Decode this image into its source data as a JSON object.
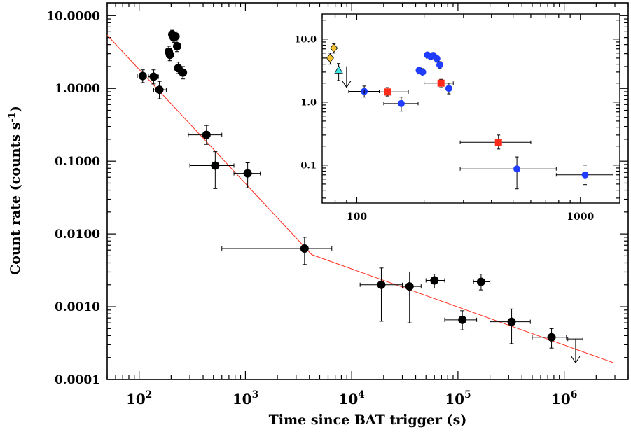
{
  "chart_data": [
    {
      "type": "scatter",
      "xlabel": "Time since BAT trigger (s)",
      "ylabel": "Count rate (counts s",
      "ylabel_superscript": "-1",
      "ylabel_close": ")",
      "x_scale": "log",
      "y_scale": "log",
      "xlim": [
        50,
        4000000
      ],
      "ylim": [
        0.0001,
        15
      ],
      "x_tick_labels": [
        {
          "value": 100,
          "base": "10",
          "exp": "2"
        },
        {
          "value": 1000,
          "base": "10",
          "exp": "3"
        },
        {
          "value": 10000,
          "base": "10",
          "exp": "4"
        },
        {
          "value": 100000,
          "base": "10",
          "exp": "5"
        },
        {
          "value": 1000000,
          "base": "10",
          "exp": "6"
        }
      ],
      "y_tick_labels": [
        {
          "value": 10,
          "label": "10.0000"
        },
        {
          "value": 1,
          "label": "1.0000"
        },
        {
          "value": 0.1,
          "label": "0.1000"
        },
        {
          "value": 0.01,
          "label": "0.0100"
        },
        {
          "value": 0.001,
          "label": "0.0010"
        },
        {
          "value": 0.0001,
          "label": "0.0001"
        }
      ],
      "series": [
        {
          "marker": "circle",
          "color": "#000000",
          "points": [
            {
              "x": 108,
              "y": 1.48,
              "xlo": 96,
              "xhi": 122,
              "ylo": 1.2,
              "yhi": 1.8
            },
            {
              "x": 137,
              "y": 1.45,
              "xlo": 122,
              "xhi": 152,
              "ylo": 1.15,
              "yhi": 1.8
            },
            {
              "x": 155,
              "y": 0.96,
              "xlo": 137,
              "xhi": 180,
              "ylo": 0.72,
              "yhi": 1.25
            },
            {
              "x": 190,
              "y": 3.2,
              "ylo": 2.7,
              "yhi": 3.8
            },
            {
              "x": 195,
              "y": 2.9,
              "ylo": 2.4,
              "yhi": 3.5
            },
            {
              "x": 205,
              "y": 5.5,
              "ylo": 4.8,
              "yhi": 6.3
            },
            {
              "x": 212,
              "y": 5.0,
              "ylo": 4.3,
              "yhi": 5.8
            },
            {
              "x": 220,
              "y": 5.2,
              "ylo": 4.5,
              "yhi": 6.0
            },
            {
              "x": 228,
              "y": 3.8,
              "ylo": 3.2,
              "yhi": 4.5
            },
            {
              "x": 233,
              "y": 1.9,
              "ylo": 1.6,
              "yhi": 2.3
            },
            {
              "x": 258,
              "y": 1.65,
              "ylo": 1.35,
              "yhi": 2.0
            },
            {
              "x": 430,
              "y": 0.23,
              "xlo": 290,
              "xhi": 600,
              "ylo": 0.17,
              "yhi": 0.31
            },
            {
              "x": 520,
              "y": 0.087,
              "xlo": 300,
              "xhi": 780,
              "ylo": 0.042,
              "yhi": 0.135
            },
            {
              "x": 1050,
              "y": 0.068,
              "xlo": 780,
              "xhi": 1380,
              "ylo": 0.043,
              "yhi": 0.095
            },
            {
              "x": 3600,
              "y": 0.0063,
              "xlo": 600,
              "xhi": 6500,
              "ylo": 0.0038,
              "yhi": 0.009
            },
            {
              "x": 19000,
              "y": 0.002,
              "xlo": 12000,
              "xhi": 30000,
              "ylo": 0.00063,
              "yhi": 0.0034
            },
            {
              "x": 35000,
              "y": 0.0019,
              "xlo": 30000,
              "xhi": 45000,
              "ylo": 0.0006,
              "yhi": 0.003
            },
            {
              "x": 60000,
              "y": 0.0023,
              "xlo": 50000,
              "xhi": 75000,
              "ylo": 0.0018,
              "yhi": 0.0028
            },
            {
              "x": 110000,
              "y": 0.00066,
              "xlo": 75000,
              "xhi": 150000,
              "ylo": 0.00048,
              "yhi": 0.00088
            },
            {
              "x": 165000,
              "y": 0.0022,
              "xlo": 140000,
              "xhi": 200000,
              "ylo": 0.0017,
              "yhi": 0.0028
            },
            {
              "x": 320000,
              "y": 0.00062,
              "xlo": 200000,
              "xhi": 480000,
              "ylo": 0.00031,
              "yhi": 0.00093
            },
            {
              "x": 760000,
              "y": 0.00038,
              "xlo": 500000,
              "xhi": 1050000,
              "ylo": 0.00027,
              "yhi": 0.0005
            }
          ]
        }
      ],
      "upper_limits": [
        {
          "x": 1280000,
          "y": 0.00036,
          "xlo": 1080000,
          "xhi": 1500000
        }
      ],
      "fit_line": {
        "color": "#ff2a1a",
        "points": [
          [
            50,
            5.4
          ],
          [
            4200,
            0.0052
          ],
          [
            2900000,
            0.00017
          ]
        ]
      }
    },
    {
      "type": "scatter",
      "position": "inset",
      "x_scale": "log",
      "y_scale": "log",
      "xlim": [
        70,
        1500
      ],
      "ylim": [
        0.025,
        25
      ],
      "x_tick_labels": [
        {
          "value": 100,
          "label": "100"
        },
        {
          "value": 1000,
          "label": "1000"
        }
      ],
      "y_tick_labels": [
        {
          "value": 10,
          "label": "10.0"
        },
        {
          "value": 1,
          "label": "1.0"
        },
        {
          "value": 0.1,
          "label": "0.1"
        }
      ],
      "series": [
        {
          "marker": "diamond",
          "color": "#f2c232",
          "points": [
            {
              "x": 76,
              "y": 5.0,
              "ylo": 4.0,
              "yhi": 6.0
            },
            {
              "x": 79,
              "y": 7.2,
              "ylo": 6.0,
              "yhi": 8.4
            }
          ]
        },
        {
          "marker": "triangle",
          "color": "#3ce6e6",
          "points": [
            {
              "x": 83,
              "y": 3.2,
              "ylo": 2.2,
              "yhi": 4.1
            }
          ]
        },
        {
          "marker": "circle",
          "color": "#1f3cff",
          "points": [
            {
              "x": 108,
              "y": 1.48,
              "xlo": 92,
              "xhi": 126,
              "ylo": 1.2,
              "yhi": 1.8
            },
            {
              "x": 158,
              "y": 0.95,
              "xlo": 132,
              "xhi": 188,
              "ylo": 0.72,
              "yhi": 1.2
            },
            {
              "x": 190,
              "y": 3.2,
              "ylo": 2.8,
              "yhi": 3.6
            },
            {
              "x": 197,
              "y": 3.0,
              "ylo": 2.6,
              "yhi": 3.4
            },
            {
              "x": 207,
              "y": 5.6,
              "ylo": 5.0,
              "yhi": 6.2
            },
            {
              "x": 214,
              "y": 5.3,
              "ylo": 4.7,
              "yhi": 5.9
            },
            {
              "x": 220,
              "y": 5.5,
              "ylo": 4.9,
              "yhi": 6.1
            },
            {
              "x": 228,
              "y": 4.9,
              "ylo": 4.3,
              "yhi": 5.5
            },
            {
              "x": 235,
              "y": 3.9,
              "ylo": 3.4,
              "yhi": 4.4
            },
            {
              "x": 258,
              "y": 1.65,
              "ylo": 1.35,
              "yhi": 2.0
            },
            {
              "x": 520,
              "y": 0.087,
              "xlo": 290,
              "xhi": 780,
              "ylo": 0.042,
              "yhi": 0.135
            },
            {
              "x": 1050,
              "y": 0.07,
              "xlo": 780,
              "xhi": 1400,
              "ylo": 0.049,
              "yhi": 0.1
            }
          ]
        },
        {
          "marker": "square",
          "color": "#ff2a1a",
          "points": [
            {
              "x": 137,
              "y": 1.45,
              "xlo": 108,
              "xhi": 170,
              "ylo": 1.25,
              "yhi": 1.7
            },
            {
              "x": 238,
              "y": 2.0,
              "xlo": 200,
              "xhi": 270,
              "ylo": 1.7,
              "yhi": 2.3
            },
            {
              "x": 430,
              "y": 0.23,
              "xlo": 290,
              "xhi": 600,
              "ylo": 0.18,
              "yhi": 0.3
            }
          ]
        }
      ],
      "upper_limits": [
        {
          "x": 90,
          "y": 3.7
        }
      ]
    }
  ]
}
